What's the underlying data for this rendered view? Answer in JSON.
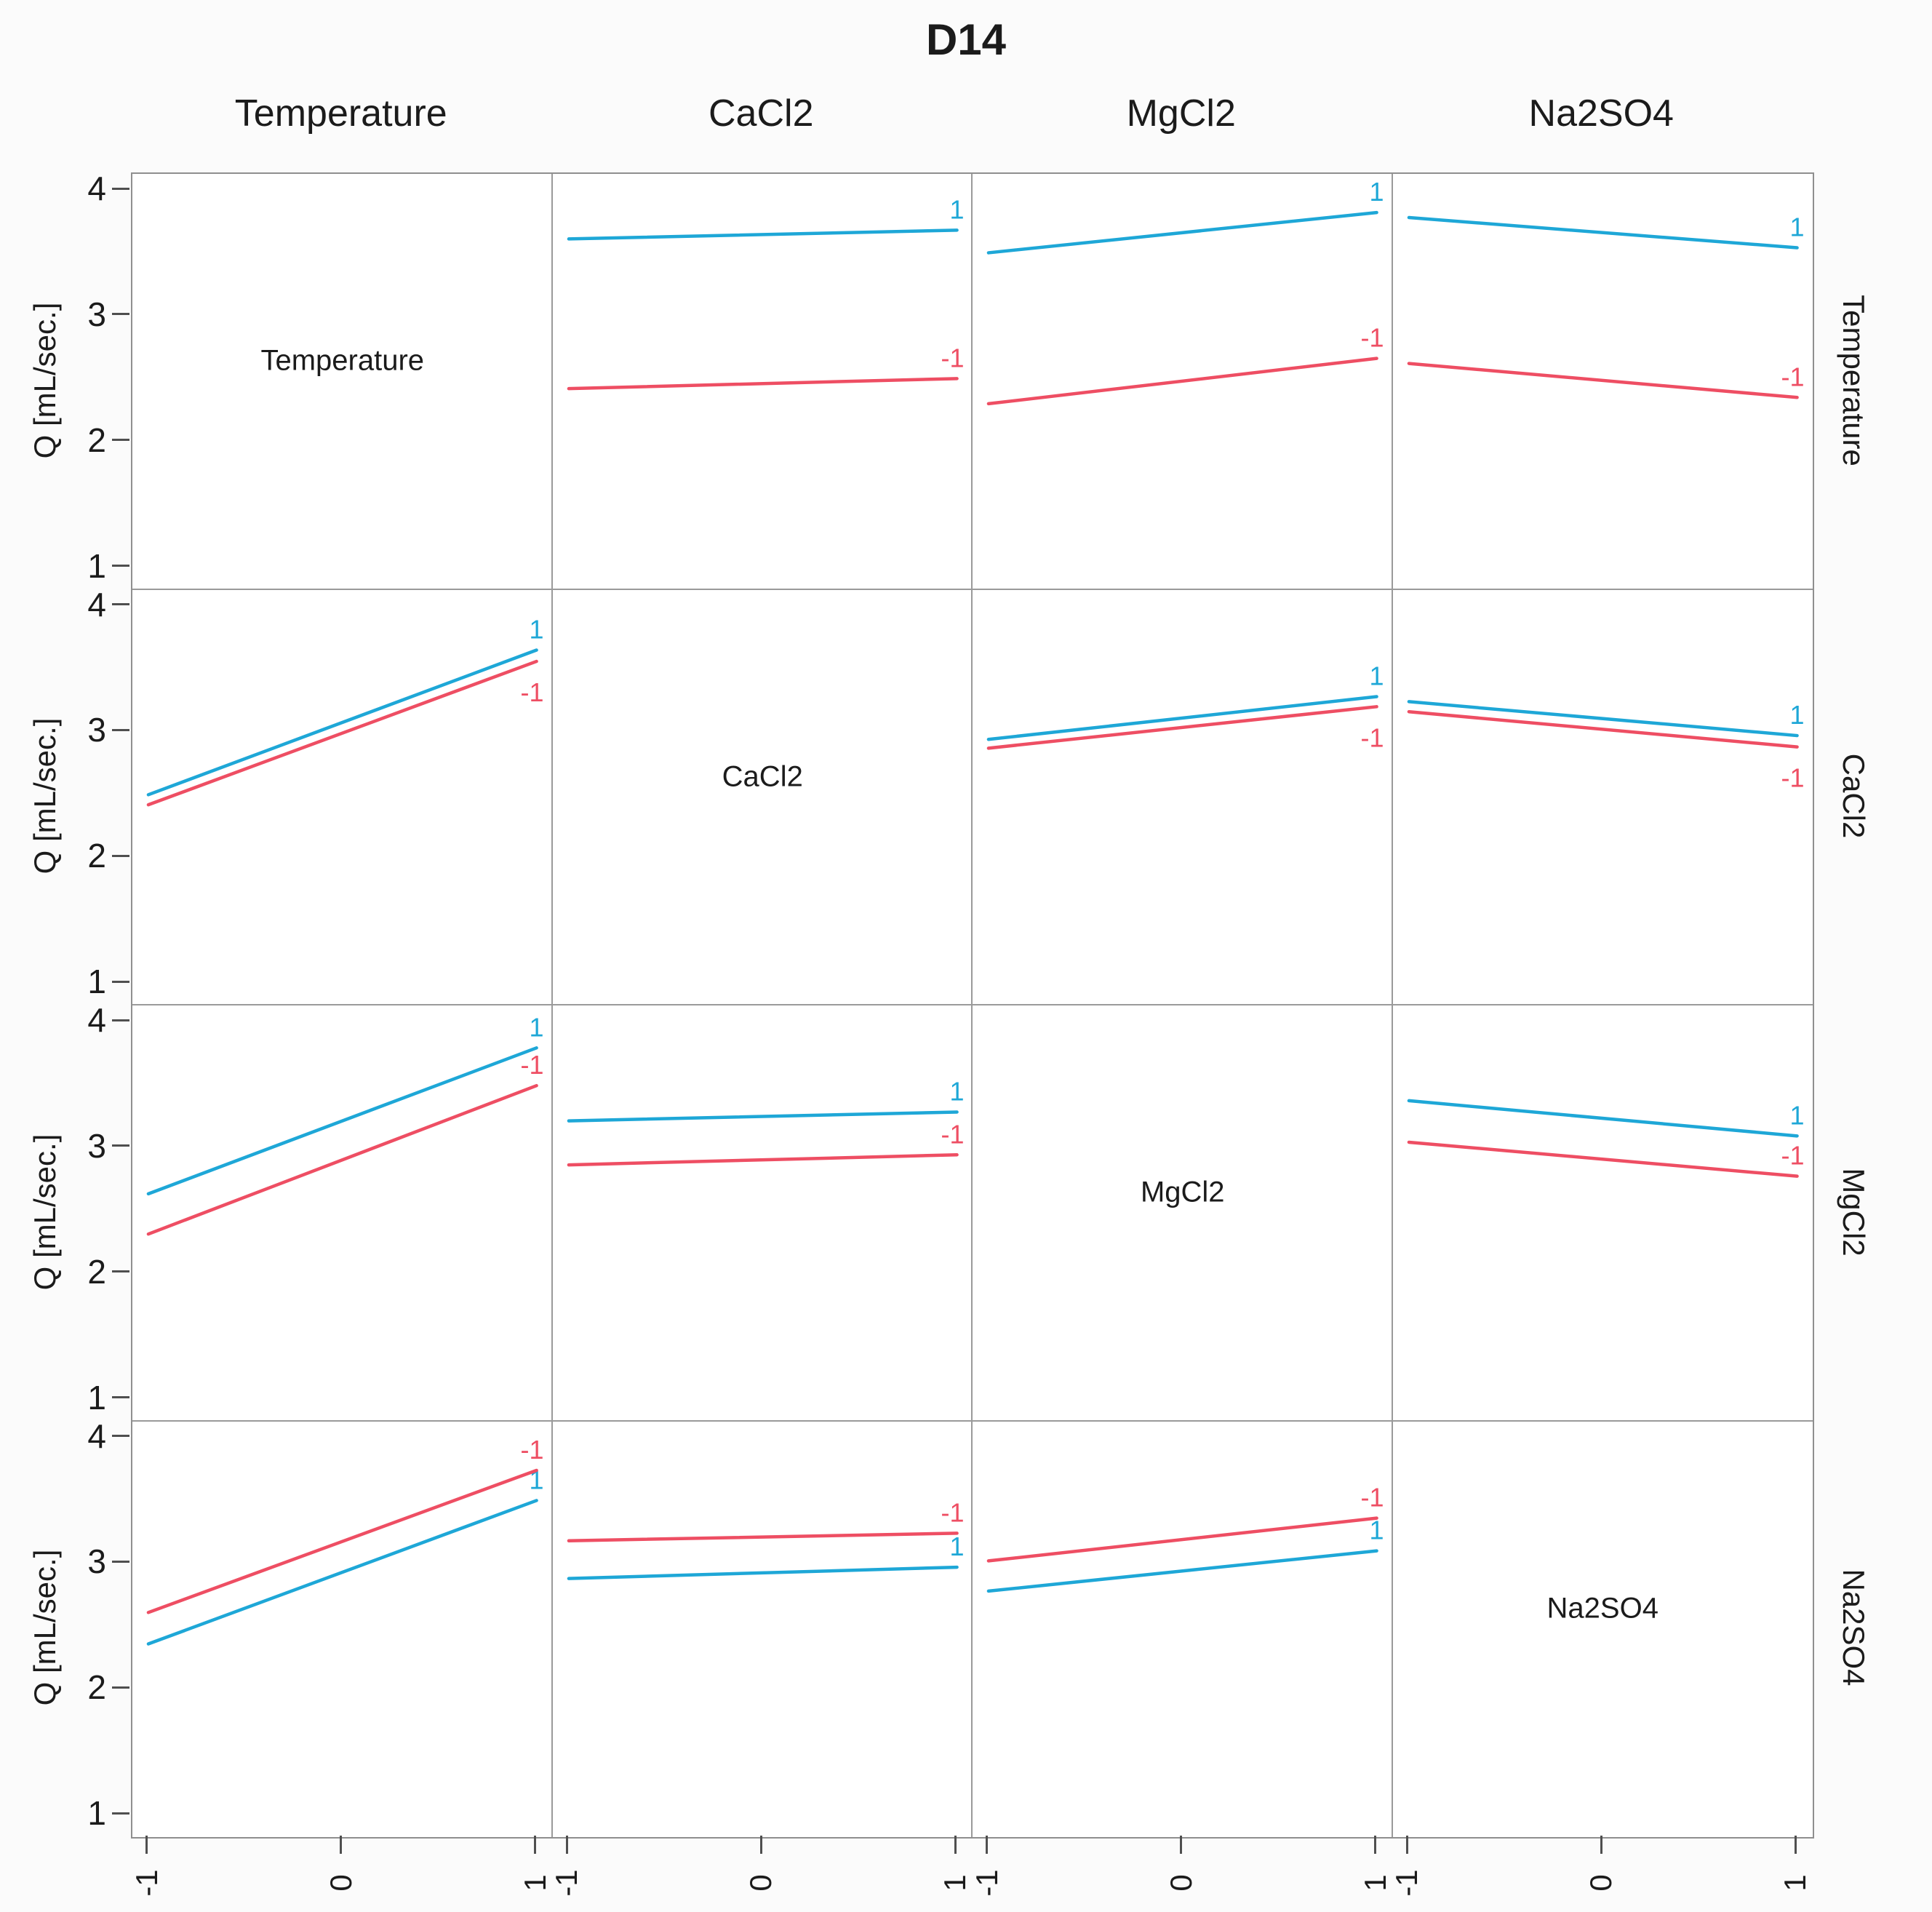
{
  "title": "D14",
  "factors": [
    "Temperature",
    "CaCl2",
    "MgCl2",
    "Na2SO4"
  ],
  "y_axis": {
    "label": "Q [mL/sec.]",
    "tick_labels": [
      "4",
      "3",
      "2",
      "1"
    ]
  },
  "x_axis": {
    "tick_labels": [
      "-1",
      "0",
      "1"
    ]
  },
  "series_labels": {
    "positive": "1",
    "negative": "-1"
  },
  "colors": {
    "positive_line": "#1EA7D7",
    "negative_line": "#EE4E63",
    "axis_text": "#1b1b1b",
    "grid_line": "#8f8f8f"
  },
  "chart_data": {
    "type": "line",
    "title": "D14",
    "ylabel": "Q [mL/sec.]",
    "ylim": [
      1,
      4
    ],
    "x_levels": [
      -1,
      1
    ],
    "x_ticks": [
      -1,
      0,
      1
    ],
    "grid": false,
    "layout": "4x4 interaction matrix; row factor = trace lines (+1 blue, -1 red), column factor = x axis; diagonal shows factor name",
    "row_factors": [
      "Temperature",
      "CaCl2",
      "MgCl2",
      "Na2SO4"
    ],
    "col_factors": [
      "Temperature",
      "CaCl2",
      "MgCl2",
      "Na2SO4"
    ],
    "cells": [
      [
        null,
        {
          "pos": [
            3.61,
            3.68
          ],
          "neg": [
            2.42,
            2.5
          ]
        },
        {
          "pos": [
            3.5,
            3.82
          ],
          "neg": [
            2.3,
            2.66
          ]
        },
        {
          "pos": [
            3.78,
            3.54
          ],
          "neg": [
            2.62,
            2.35
          ]
        }
      ],
      [
        {
          "pos": [
            2.5,
            3.65
          ],
          "neg": [
            2.42,
            3.56
          ]
        },
        null,
        {
          "pos": [
            2.94,
            3.28
          ],
          "neg": [
            2.87,
            3.2
          ]
        },
        {
          "pos": [
            3.24,
            2.97
          ],
          "neg": [
            3.16,
            2.88
          ]
        }
      ],
      [
        {
          "pos": [
            2.63,
            3.79
          ],
          "neg": [
            2.31,
            3.49
          ]
        },
        {
          "pos": [
            3.21,
            3.28
          ],
          "neg": [
            2.86,
            2.94
          ]
        },
        null,
        {
          "pos": [
            3.37,
            3.09
          ],
          "neg": [
            3.04,
            2.77
          ]
        }
      ],
      [
        {
          "pos": [
            2.36,
            3.5
          ],
          "neg": [
            2.61,
            3.74
          ]
        },
        {
          "pos": [
            2.88,
            2.97
          ],
          "neg": [
            3.18,
            3.24
          ]
        },
        {
          "pos": [
            2.78,
            3.1
          ],
          "neg": [
            3.02,
            3.36
          ]
        },
        null
      ]
    ]
  }
}
